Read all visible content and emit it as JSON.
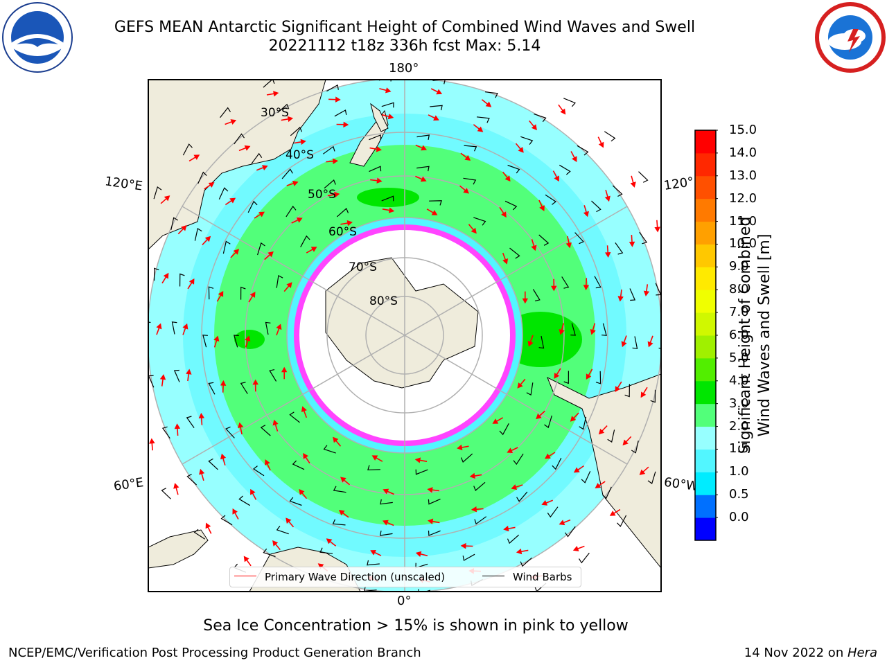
{
  "title": {
    "line1": "GEFS MEAN Antarctic Significant Height of Combined Wind Waves and Swell",
    "line2": "20221112 t18z 336h fcst   Max: 5.14"
  },
  "logos": {
    "left": "noaa-logo",
    "right": "nws-logo"
  },
  "longitude_labels": {
    "top": "180°",
    "bottom": "0°",
    "left_upper": "120°E",
    "left_lower": "60°E",
    "right_upper": "120°",
    "right_lower": "60°W"
  },
  "latitude_labels": [
    "30°S",
    "40°S",
    "50°S",
    "60°S",
    "70°S",
    "80°S"
  ],
  "legend": {
    "wave_direction": "Primary Wave Direction (unscaled)",
    "wind_barbs": "Wind Barbs"
  },
  "colorbar": {
    "title_line1": "Significant Height of Combined",
    "title_line2": "Wind Waves and Swell [m]",
    "ticks": [
      "15.0",
      "14.0",
      "13.0",
      "12.0",
      "11.0",
      "10.0",
      "9.0",
      "8.0",
      "7.0",
      "6.0",
      "5.0",
      "4.0",
      "3.0",
      "2.0",
      "1.5",
      "1.0",
      "0.5",
      "0.0"
    ],
    "colors": [
      "#0000ff",
      "#0070ff",
      "#00ecff",
      "#52f6ff",
      "#97ffff",
      "#52ff7a",
      "#00e600",
      "#52ee00",
      "#a0f000",
      "#d0f800",
      "#f0ff00",
      "#ffea00",
      "#ffc800",
      "#ffa000",
      "#ff7a00",
      "#ff5000",
      "#ff2800",
      "#ff0000"
    ]
  },
  "sea_ice_note": "Sea Ice Concentration > 15% is shown in pink to yellow",
  "footer": {
    "left": "NCEP/EMC/Verification Post Processing Product Generation Branch",
    "right_prefix": "14 Nov 2022 on ",
    "right_machine": "Hera"
  },
  "colors": {
    "land": "#efecdc",
    "ocean_low": "#97ffff",
    "ocean_mid": "#52ff7a",
    "ocean_high": "#00e600",
    "ice_edge": "#ff44ff",
    "wave_arrow": "#ff0000",
    "grid": "#b0b0b0"
  }
}
